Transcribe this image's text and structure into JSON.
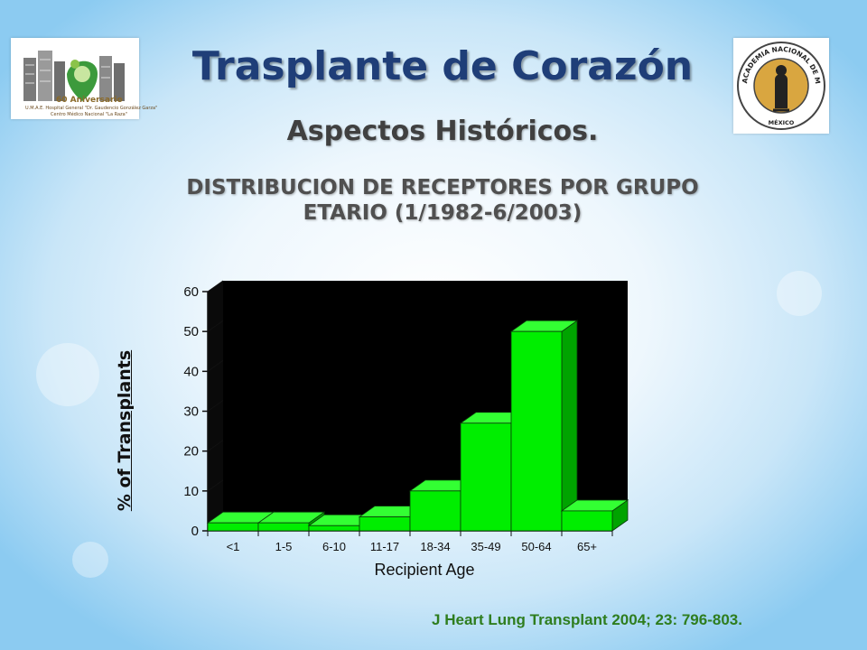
{
  "slide": {
    "title": "Trasplante de Corazón",
    "subtitle": "Aspectos Históricos.",
    "heading": "DISTRIBUCION DE RECEPTORES POR GRUPO ETARIO (1/1982-6/2003)",
    "citation": "J Heart Lung Transplant 2004; 23: 796-803."
  },
  "logos": {
    "left_line1": "60 Aniversario",
    "left_line2": "U.M.A.E. Hospital General \"Dr. Gaudencio González Garza\"",
    "left_line3": "Centro Médico Nacional \"La Raza\"",
    "right_ring": "ACADEMIA NACIONAL DE MEDICINA",
    "right_bottom": "MÉXICO"
  },
  "colors": {
    "bar": "#00ee00",
    "bar_top": "#33ff33",
    "bar_side": "#00a300",
    "plot_bg": "#000000",
    "title": "#1f3e78"
  },
  "chart_data": {
    "type": "bar",
    "categories": [
      "<1",
      "1-5",
      "6-10",
      "11-17",
      "18-34",
      "35-49",
      "50-64",
      "65+"
    ],
    "values": [
      2,
      2,
      1.3,
      3.5,
      10,
      27,
      50,
      5
    ],
    "xlabel": "Recipient Age",
    "ylabel": "% of Transplants",
    "ylim": [
      0,
      60
    ],
    "yticks": [
      0,
      10,
      20,
      30,
      40,
      50,
      60
    ],
    "grid": false,
    "style": "3d"
  }
}
